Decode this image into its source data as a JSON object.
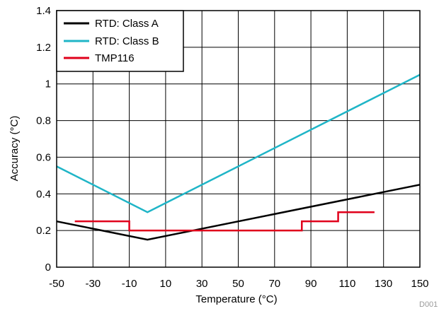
{
  "chart_data": {
    "type": "line",
    "xlabel": "Temperature (°C)",
    "ylabel": "Accuracy (°C)",
    "xlim": [
      -50,
      150
    ],
    "ylim": [
      0,
      1.4
    ],
    "x_ticks": [
      -50,
      -30,
      -10,
      10,
      30,
      50,
      70,
      90,
      110,
      130,
      150
    ],
    "y_ticks": [
      0,
      0.2,
      0.4,
      0.6,
      0.8,
      1,
      1.2,
      1.4
    ],
    "x_tick_labels": [
      "-50",
      "-30",
      "-10",
      "10",
      "30",
      "50",
      "70",
      "90",
      "110",
      "130",
      "150"
    ],
    "y_tick_labels": [
      "0",
      "0.2",
      "0.4",
      "0.6",
      "0.8",
      "1",
      "1.2",
      "1.4"
    ],
    "grid": true,
    "legend_position": "top-left",
    "figure_id": "D001",
    "series": [
      {
        "name": "RTD: Class A",
        "color": "#000000",
        "points": [
          [
            -50,
            0.25
          ],
          [
            0,
            0.15
          ],
          [
            150,
            0.45
          ]
        ]
      },
      {
        "name": "RTD: Class B",
        "color": "#1fb5c7",
        "points": [
          [
            -50,
            0.55
          ],
          [
            0,
            0.3
          ],
          [
            150,
            1.05
          ]
        ]
      },
      {
        "name": "TMP116",
        "color": "#e0001b",
        "points": [
          [
            -40,
            0.25
          ],
          [
            -10,
            0.25
          ],
          [
            -10,
            0.2
          ],
          [
            85,
            0.2
          ],
          [
            85,
            0.25
          ],
          [
            105,
            0.25
          ],
          [
            105,
            0.3
          ],
          [
            125,
            0.3
          ]
        ]
      }
    ]
  }
}
